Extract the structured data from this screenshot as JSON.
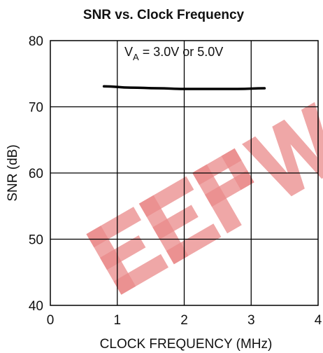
{
  "chart_data": {
    "type": "line",
    "title": "SNR vs. Clock Frequency",
    "xlabel": "CLOCK FREQUENCY (MHz)",
    "ylabel": "SNR (dB)",
    "xlim": [
      0,
      4
    ],
    "ylim": [
      40,
      80
    ],
    "xticks": [
      "0",
      "1",
      "2",
      "3",
      "4"
    ],
    "yticks": [
      "40",
      "50",
      "60",
      "70",
      "80"
    ],
    "grid": true,
    "annotation": {
      "main": "V",
      "subscript": "A",
      "rest": " = 3.0V or 5.0V"
    },
    "series": [
      {
        "color": "#000000",
        "x": [
          0.8,
          1.2,
          1.6,
          2.0,
          2.4,
          2.8,
          3.2
        ],
        "y": [
          73.1,
          72.9,
          72.8,
          72.7,
          72.7,
          72.7,
          72.8
        ]
      }
    ]
  },
  "watermark": {
    "text": "EEPW",
    "color": "#e98a8a"
  }
}
